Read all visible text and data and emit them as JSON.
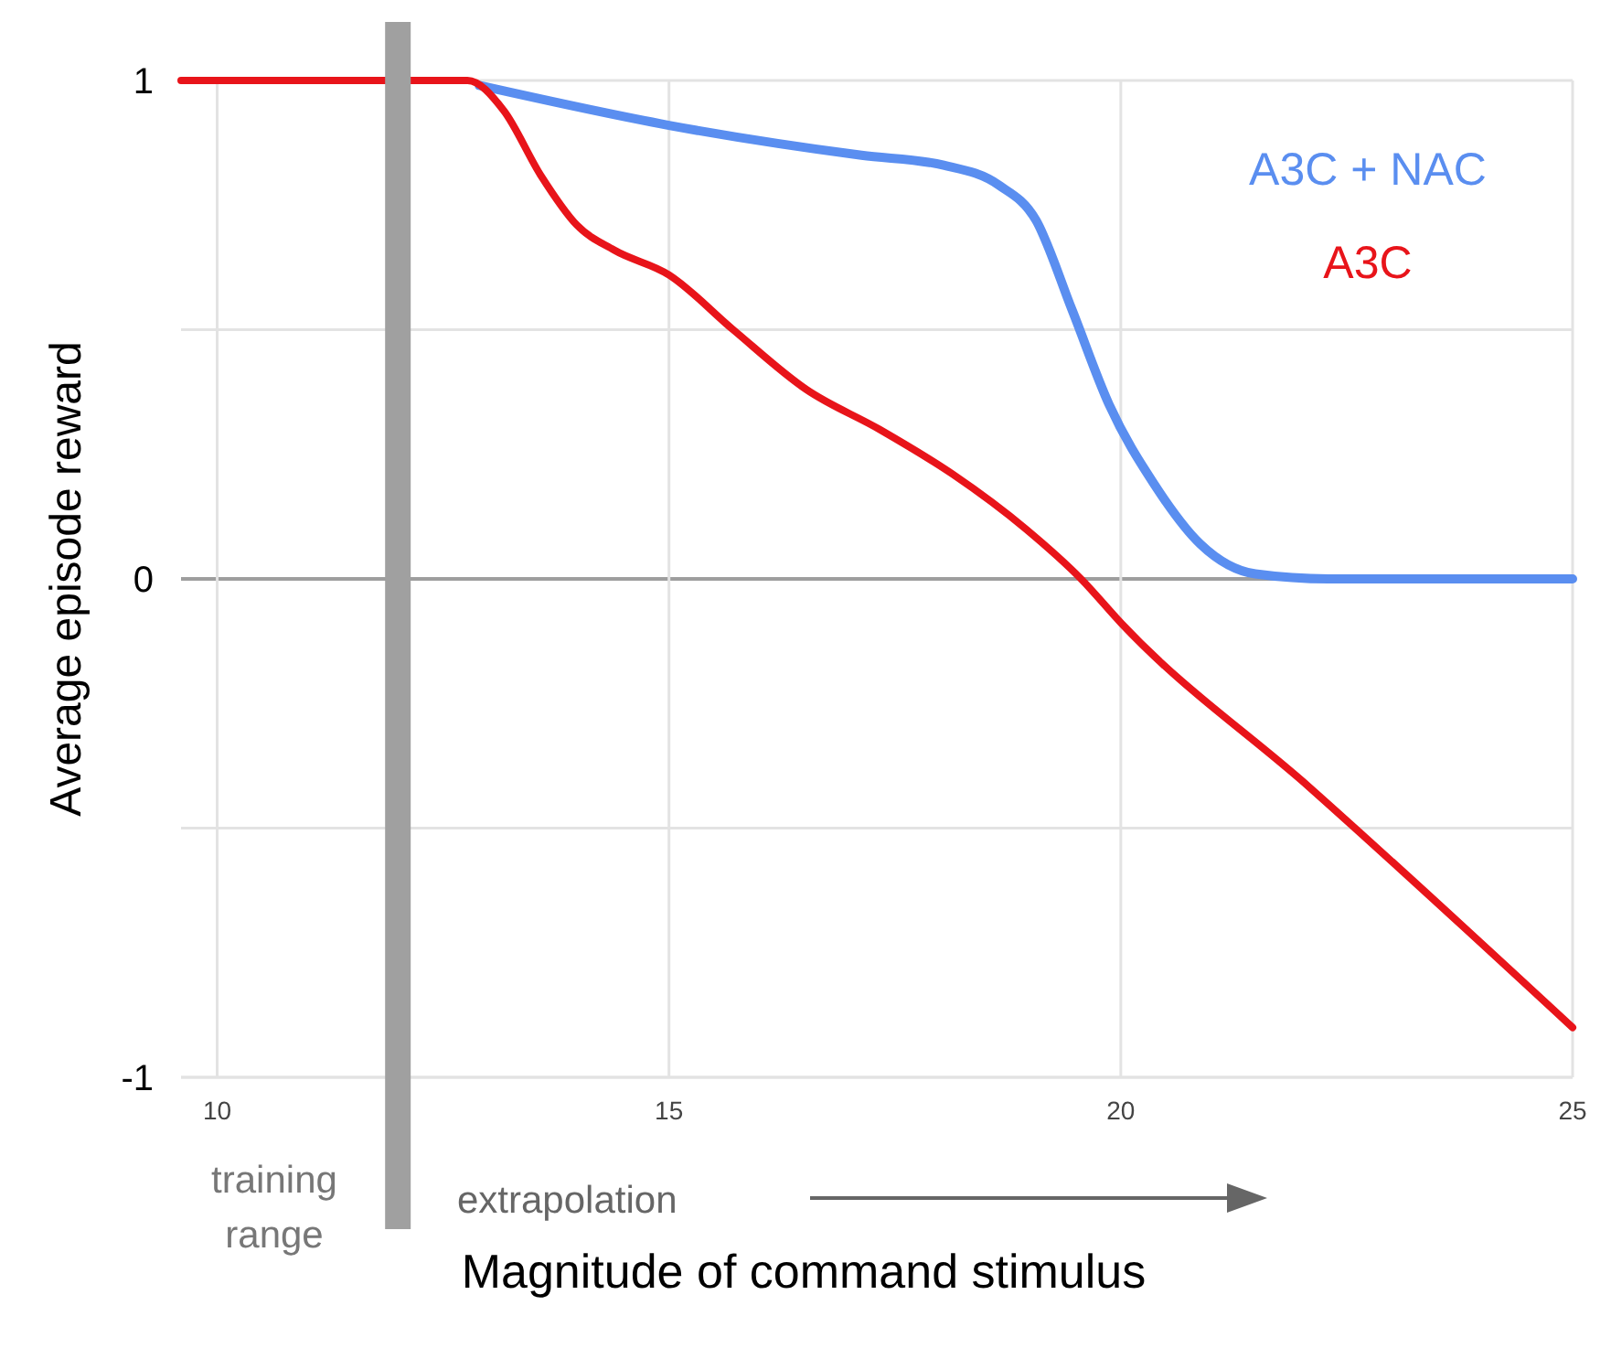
{
  "chart_data": {
    "type": "line",
    "xlabel": "Magnitude of command stimulus",
    "ylabel": "Average episode reward",
    "xlim": [
      9.6,
      25
    ],
    "xticks": [
      10,
      15,
      20,
      25
    ],
    "ylim": [
      -1,
      1
    ],
    "yticks": [
      -1,
      {
        "value": -0.5,
        "label": null
      },
      0,
      {
        "value": 0.5,
        "label": null
      },
      1
    ],
    "grid": true,
    "legend": "top right",
    "marker": "none",
    "line_style": "solid",
    "ref_lines": [
      {
        "axis": "x",
        "value": 12,
        "color": "#a0a0a0"
      }
    ],
    "annotations": [
      "training range",
      "extrapolation"
    ],
    "series": [
      {
        "name": "A3C + NAC",
        "color": "#5a8ef0",
        "x": [
          12.9,
          15,
          17.13,
          18.04,
          18.65,
          19.06,
          19.46,
          19.87,
          20.37,
          20.88,
          21.49,
          22.3,
          25
        ],
        "values": [
          0.99,
          0.91,
          0.85,
          0.83,
          0.79,
          0.72,
          0.54,
          0.35,
          0.19,
          0.07,
          0.01,
          0,
          0
        ]
      },
      {
        "name": "A3C",
        "color": "#e8141a",
        "x": [
          9.6,
          12.77,
          13.17,
          13.58,
          13.98,
          14.39,
          15,
          15.71,
          16.52,
          17.33,
          18.14,
          18.95,
          19.56,
          20.01,
          22.1,
          25
        ],
        "values": [
          1,
          1,
          0.94,
          0.81,
          0.71,
          0.66,
          0.61,
          0.5,
          0.38,
          0.3,
          0.21,
          0.1,
          0,
          -0.09,
          -0.42,
          -0.9
        ]
      }
    ]
  }
}
